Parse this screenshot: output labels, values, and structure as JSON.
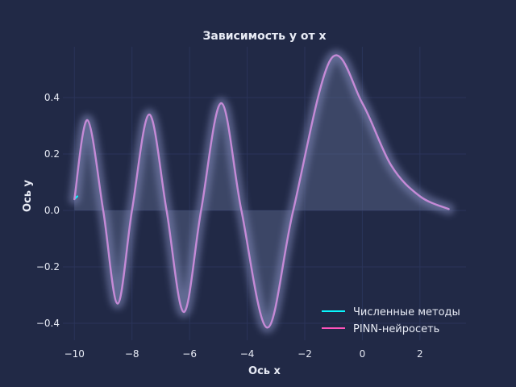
{
  "chart_data": {
    "type": "line",
    "title": "Зависимость y от x",
    "xlabel": "Ось x",
    "ylabel": "Ось y",
    "xlim": [
      -10.4,
      3.6
    ],
    "ylim": [
      -0.46,
      0.58
    ],
    "xticks": [
      -10,
      -8,
      -6,
      -4,
      -2,
      0,
      2
    ],
    "xtick_labels": [
      "−10",
      "−8",
      "−6",
      "−4",
      "−2",
      "0",
      "2"
    ],
    "yticks": [
      -0.4,
      -0.2,
      0.0,
      0.2,
      0.4
    ],
    "ytick_labels": [
      "−0.4",
      "−0.2",
      "0.0",
      "0.2",
      "0.4"
    ],
    "grid": true,
    "legend_position": "lower-right",
    "colors": {
      "background": "#212946",
      "grid": "#2A3459",
      "numeric": "#08F7FE",
      "pinn": "#FE53BB",
      "curve": "#c58ad6",
      "fill": "#5d6a8f",
      "text": "#e8ebf5"
    },
    "series": [
      {
        "name": "Численные методы",
        "x": [
          -10.0,
          -9.9
        ],
        "y": [
          0.04,
          0.05
        ]
      },
      {
        "name": "PINN-нейросеть",
        "x": [
          -10.0,
          -9.55,
          -9.0,
          -8.5,
          -8.0,
          -7.4,
          -6.8,
          -6.2,
          -5.6,
          -4.9,
          -4.2,
          -3.3,
          -2.4,
          -1.1,
          0.0,
          1.0,
          2.0,
          3.0
        ],
        "y": [
          0.04,
          0.32,
          0.0,
          -0.33,
          0.0,
          0.34,
          0.0,
          -0.36,
          0.0,
          0.38,
          0.0,
          -0.415,
          0.0,
          0.535,
          0.38,
          0.16,
          0.05,
          0.005
        ]
      }
    ]
  }
}
